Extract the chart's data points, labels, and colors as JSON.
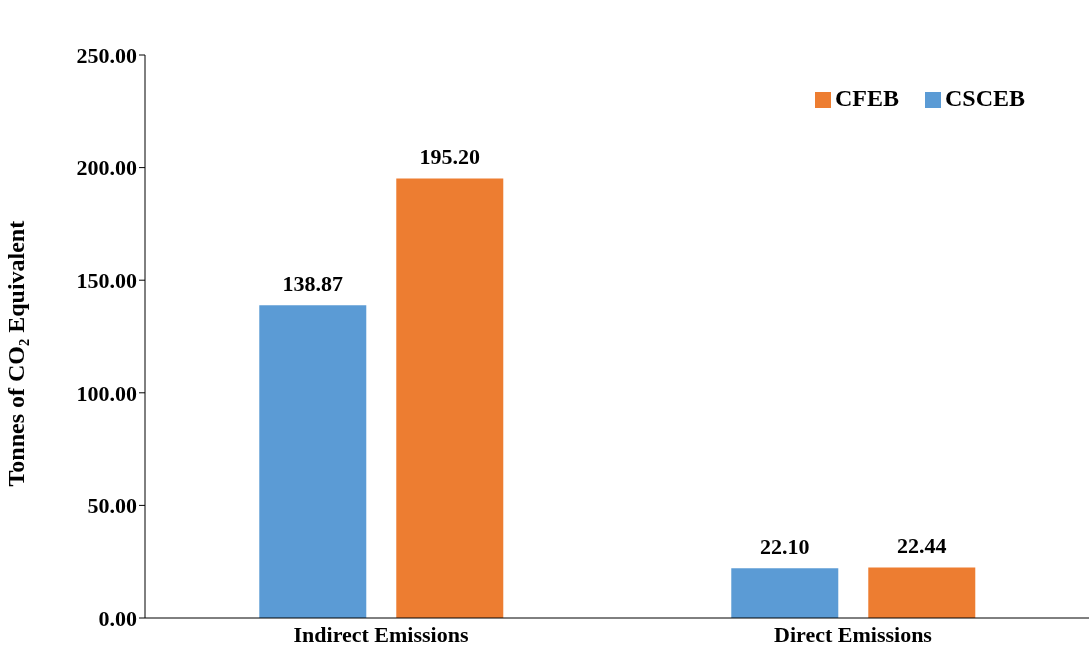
{
  "chart_data": {
    "type": "bar",
    "ylabel": "Tonnes of CO₂ Equivalent",
    "categories": [
      "Indirect Emissions",
      "Direct Emissions"
    ],
    "series": [
      {
        "name": "CSCEB",
        "color": "#5b9bd5",
        "values": [
          138.87,
          22.1
        ],
        "value_labels": [
          "138.87",
          "22.10"
        ]
      },
      {
        "name": "CFEB",
        "color": "#ed7d31",
        "values": [
          195.2,
          22.44
        ],
        "value_labels": [
          "195.20",
          "22.44"
        ]
      }
    ],
    "ylim": [
      0,
      250
    ],
    "yticks": [
      {
        "value": 0,
        "label": "0.00"
      },
      {
        "value": 50,
        "label": "50.00"
      },
      {
        "value": 100,
        "label": "100.00"
      },
      {
        "value": 150,
        "label": "150.00"
      },
      {
        "value": 200,
        "label": "200.00"
      },
      {
        "value": 250,
        "label": "250.00"
      }
    ],
    "grid": false,
    "legend": "top right"
  }
}
